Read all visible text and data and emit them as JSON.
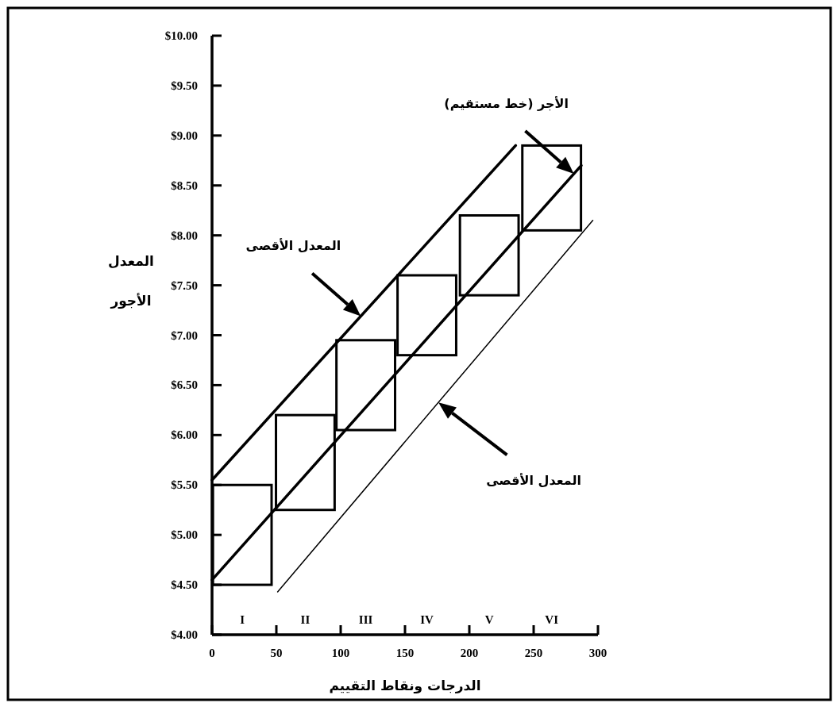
{
  "chart_data": {
    "type": "line",
    "xlabel": "الدرجات ونقاط التقييم",
    "ylabel": "المعدل الأجور",
    "xlim": [
      0,
      300
    ],
    "xticks": [
      0,
      50,
      100,
      150,
      200,
      250,
      300
    ],
    "ylim": [
      4,
      10
    ],
    "yticks": [
      {
        "value": 4,
        "label": "$4.00"
      },
      {
        "value": 4.5,
        "label": "$4.50"
      },
      {
        "value": 5,
        "label": "$5.00"
      },
      {
        "value": 5.5,
        "label": "$5.50"
      },
      {
        "value": 6,
        "label": "$6.00"
      },
      {
        "value": 6.5,
        "label": "$6.50"
      },
      {
        "value": 7,
        "label": "$7.00"
      },
      {
        "value": 7.5,
        "label": "$7.50"
      },
      {
        "value": 8,
        "label": "$8.00"
      },
      {
        "value": 8.5,
        "label": "$8.50"
      },
      {
        "value": 9,
        "label": "$9.00"
      },
      {
        "value": 9.5,
        "label": "$9.50"
      },
      {
        "value": 10,
        "label": "$10.00"
      }
    ],
    "grid": false,
    "series": [
      {
        "type": "bar",
        "x": [
          23.5,
          72.5,
          119.5,
          167,
          215.5,
          264
        ],
        "base": [
          4.5,
          5.25,
          6.05,
          6.8,
          7.4,
          8.05
        ],
        "values": [
          1.0,
          0.95,
          0.9,
          0.8,
          0.8,
          0.85
        ],
        "color": "#000000"
      },
      {
        "x": [
          0,
          236
        ],
        "values": [
          5.55,
          8.9
        ],
        "color": "#000000"
      },
      {
        "x": [
          0,
          287
        ],
        "values": [
          4.55,
          8.7
        ],
        "color": "#000000"
      },
      {
        "x": [
          51,
          296
        ],
        "values": [
          4.43,
          8.15
        ],
        "color": "#000000"
      }
    ],
    "annotations": [
      "المعدل الأقصى",
      "الأجر (خط مستقيم)",
      "المعدل الأقصى",
      "I",
      "II",
      "III",
      "IV",
      "V",
      "VI"
    ]
  }
}
